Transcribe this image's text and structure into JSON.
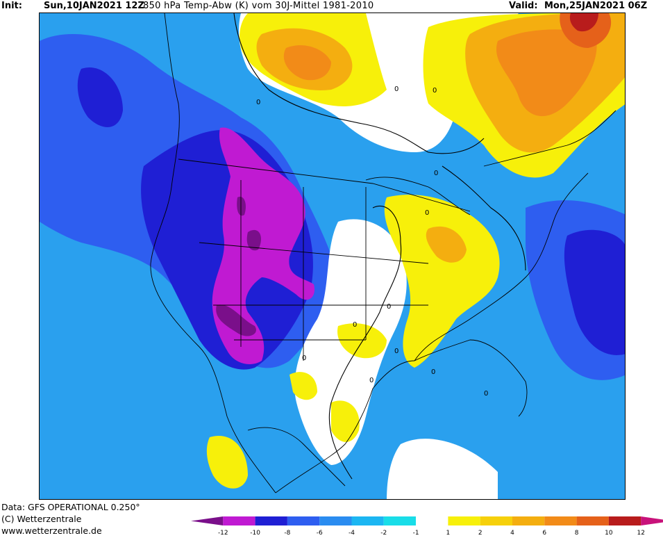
{
  "header": {
    "init_label": "Init:",
    "init_run": "Sun,10JAN2021 12Z",
    "variable": "850 hPa Temp-Abw (K) vom 30J-Mittel 1981-2010",
    "valid_label": "Valid:",
    "valid_time": "Mon,25JAN2021 06Z"
  },
  "credits": {
    "data_source": "Data: GFS OPERATIONAL 0.250°",
    "copyright": "(C) Wetterzentrale",
    "website": "www.wetterzentrale.de"
  },
  "legend": {
    "bins": [
      {
        "color": "#7a0f8a"
      },
      {
        "color": "#c01ad2"
      },
      {
        "color": "#1f1fd4"
      },
      {
        "color": "#2e5ef0"
      },
      {
        "color": "#2a8cf0"
      },
      {
        "color": "#1cb6f2"
      },
      {
        "color": "#19dde8"
      },
      {
        "color": "#ffffff"
      },
      {
        "color": "#f7f00a"
      },
      {
        "color": "#f6d00b"
      },
      {
        "color": "#f4ae10"
      },
      {
        "color": "#f28b18"
      },
      {
        "color": "#e5611a"
      },
      {
        "color": "#b81c1c"
      },
      {
        "color": "#c8127a"
      }
    ],
    "ticks": [
      "-12",
      "-10",
      "-8",
      "-6",
      "-4",
      "-2",
      "-1",
      "1",
      "2",
      "4",
      "6",
      "8",
      "10",
      "12"
    ]
  },
  "map": {
    "colors": {
      "ocean_base": "#2aa0ee",
      "cold_blue": "#2e5ef0",
      "deep_blue": "#1f1fd4",
      "magenta": "#c01ad2",
      "purple": "#7a0f8a",
      "cyan": "#19dde8",
      "white": "#ffffff",
      "yellow": "#f7f00a",
      "gold": "#f4ae10",
      "orange": "#f28b18",
      "dark_orange": "#e5611a",
      "dark_red": "#b81c1c"
    },
    "contour_labels": [
      "0",
      "0",
      "0",
      "0",
      "0",
      "0",
      "0",
      "0",
      "0",
      "0",
      "0",
      "0"
    ]
  }
}
